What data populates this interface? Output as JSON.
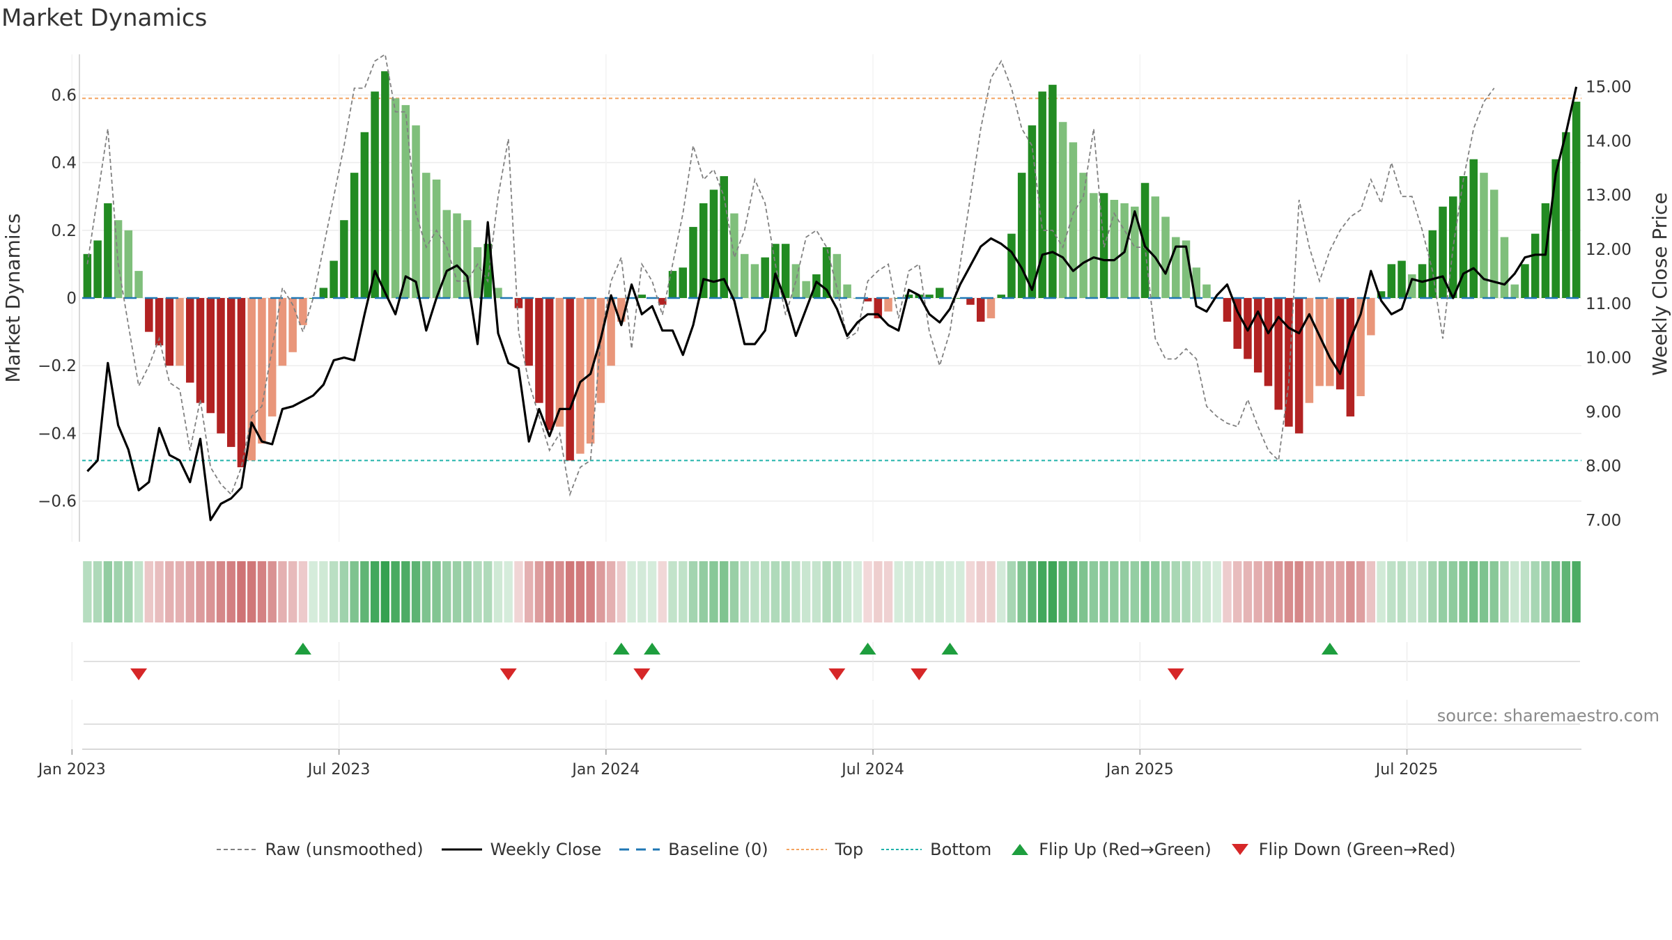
{
  "title": "Market Dynamics",
  "source": "source: sharemaestro.com",
  "colors": {
    "strong_green": "#228B22",
    "light_green": "#7fbf7b",
    "strong_red": "#b22222",
    "light_red": "#e9967a",
    "close_line": "#000000",
    "raw_line": "#808080",
    "baseline": "#1f77b4",
    "top": "#f4a460",
    "bottom": "#20b2aa",
    "flip_up": "#1e9e3e",
    "flip_down": "#d62728"
  },
  "legend": [
    {
      "key": "raw",
      "label": "Raw (unsmoothed)",
      "icon": "gray-dashed-line"
    },
    {
      "key": "close",
      "label": "Weekly Close",
      "icon": "black-solid-line"
    },
    {
      "key": "baseline",
      "label": "Baseline (0)",
      "icon": "blue-dashed-line"
    },
    {
      "key": "top",
      "label": "Top",
      "icon": "orange-dotted-line"
    },
    {
      "key": "bottom",
      "label": "Bottom",
      "icon": "teal-dotted-line"
    },
    {
      "key": "flip_up",
      "label": "Flip Up (Red→Green)",
      "icon": "green-up-triangle"
    },
    {
      "key": "flip_down",
      "label": "Flip Down (Green→Red)",
      "icon": "red-down-triangle"
    }
  ],
  "chart_data": {
    "type": "bar",
    "title": "Market Dynamics",
    "ylabel_left": "Market Dynamics",
    "ylabel_right": "Weekly Close Price",
    "left_ticks": [
      "0.6",
      "0.4",
      "0.2",
      "0",
      "−0.2",
      "−0.4",
      "−0.6"
    ],
    "left_tick_values": [
      0.6,
      0.4,
      0.2,
      0,
      -0.2,
      -0.4,
      -0.6
    ],
    "right_ticks": [
      "15.00",
      "14.00",
      "13.00",
      "12.00",
      "11.00",
      "10.00",
      "9.00",
      "8.00",
      "7.00"
    ],
    "right_tick_values": [
      15,
      14,
      13,
      12,
      11,
      10,
      9,
      8,
      7
    ],
    "x_ticks": [
      "Jan 2023",
      "Jul 2023",
      "Jan 2024",
      "Jul 2024",
      "Jan 2025",
      "Jul 2025"
    ],
    "x_tick_weeks": [
      0,
      26,
      52,
      78,
      104,
      130
    ],
    "ylim_left": [
      -0.72,
      0.72
    ],
    "ylim_right": [
      6.6,
      15.6
    ],
    "top_level": 0.59,
    "bottom_level": -0.48,
    "baseline_level": 0,
    "start_week": "2023-01-01",
    "series": [
      {
        "name": "Market Dynamics",
        "values": [
          0.13,
          0.17,
          0.28,
          0.23,
          0.2,
          0.08,
          -0.1,
          -0.14,
          -0.2,
          -0.2,
          -0.25,
          -0.31,
          -0.34,
          -0.4,
          -0.44,
          -0.5,
          -0.48,
          -0.43,
          -0.35,
          -0.2,
          -0.16,
          -0.08,
          0,
          0.03,
          0.11,
          0.23,
          0.37,
          0.49,
          0.61,
          0.67,
          0.59,
          0.57,
          0.51,
          0.37,
          0.35,
          0.26,
          0.25,
          0.23,
          0.15,
          0.16,
          0.03,
          0,
          -0.03,
          -0.2,
          -0.31,
          -0.39,
          -0.38,
          -0.48,
          -0.46,
          -0.43,
          -0.31,
          -0.2,
          -0.07,
          0,
          0.01,
          0,
          -0.02,
          0.08,
          0.09,
          0.21,
          0.28,
          0.32,
          0.36,
          0.25,
          0.13,
          0.1,
          0.12,
          0.16,
          0.16,
          0.1,
          0.05,
          0.07,
          0.15,
          0.13,
          0.04,
          0,
          -0.01,
          -0.06,
          -0.04,
          0,
          0.01,
          0.01,
          0.01,
          0.03,
          0,
          0,
          -0.02,
          -0.07,
          -0.06,
          0.01,
          0.19,
          0.37,
          0.51,
          0.61,
          0.63,
          0.52,
          0.46,
          0.37,
          0.31,
          0.31,
          0.29,
          0.28,
          0.27,
          0.34,
          0.3,
          0.24,
          0.18,
          0.17,
          0.09,
          0.04,
          0,
          -0.07,
          -0.15,
          -0.18,
          -0.22,
          -0.26,
          -0.33,
          -0.38,
          -0.4,
          -0.31,
          -0.26,
          -0.26,
          -0.27,
          -0.35,
          -0.29,
          -0.11,
          0.02,
          0.1,
          0.11,
          0.07,
          0.1,
          0.2,
          0.27,
          0.3,
          0.36,
          0.41,
          0.37,
          0.32,
          0.18,
          0.04,
          0.1,
          0.19,
          0.28,
          0.41,
          0.49,
          0.58
        ]
      },
      {
        "name": "Raw (unsmoothed)",
        "values": [
          0.1,
          0.3,
          0.5,
          0.1,
          -0.08,
          -0.26,
          -0.2,
          -0.12,
          -0.25,
          -0.27,
          -0.45,
          -0.3,
          -0.5,
          -0.55,
          -0.58,
          -0.5,
          -0.35,
          -0.32,
          -0.15,
          0.03,
          -0.02,
          -0.1,
          0,
          0.15,
          0.3,
          0.45,
          0.62,
          0.62,
          0.7,
          0.72,
          0.55,
          0.55,
          0.25,
          0.15,
          0.2,
          0.15,
          0.05,
          0.05,
          0.1,
          0.05,
          0.3,
          0.47,
          -0.1,
          -0.25,
          -0.35,
          -0.45,
          -0.4,
          -0.58,
          -0.5,
          -0.48,
          -0.12,
          0.05,
          0.12,
          -0.15,
          0.1,
          0.05,
          -0.05,
          0.1,
          0.25,
          0.45,
          0.35,
          0.38,
          0.3,
          0.12,
          0.2,
          0.35,
          0.28,
          0.1,
          -0.05,
          0.05,
          0.18,
          0.2,
          0.15,
          0.03,
          -0.12,
          -0.1,
          0.05,
          0.08,
          0.1,
          -0.06,
          0.08,
          0.1,
          -0.1,
          -0.2,
          -0.1,
          0.1,
          0.3,
          0.5,
          0.65,
          0.7,
          0.62,
          0.5,
          0.45,
          0.2,
          0.2,
          0.15,
          0.25,
          0.3,
          0.5,
          0.15,
          0.25,
          0.2,
          0.15,
          0.15,
          -0.12,
          -0.18,
          -0.18,
          -0.15,
          -0.18,
          -0.32,
          -0.35,
          -0.37,
          -0.38,
          -0.3,
          -0.38,
          -0.45,
          -0.48,
          -0.25,
          0.29,
          0.15,
          0.05,
          0.14,
          0.2,
          0.24,
          0.26,
          0.35,
          0.28,
          0.4,
          0.3,
          0.3,
          0.2,
          0.08,
          -0.12,
          0.15,
          0.35,
          0.5,
          0.58,
          0.62
        ]
      },
      {
        "name": "Weekly Close",
        "values": [
          7.9,
          8.1,
          9.9,
          8.75,
          8.3,
          7.55,
          7.7,
          8.7,
          8.2,
          8.1,
          7.7,
          8.5,
          7,
          7.3,
          7.4,
          7.6,
          8.8,
          8.45,
          8.4,
          9.05,
          9.1,
          9.2,
          9.3,
          9.5,
          9.95,
          10,
          9.95,
          10.8,
          11.6,
          11.2,
          10.8,
          11.5,
          11.4,
          10.5,
          11.1,
          11.6,
          11.7,
          11.5,
          10.25,
          12.5,
          10.45,
          9.9,
          9.8,
          8.45,
          9.05,
          8.55,
          9.05,
          9.05,
          9.55,
          9.7,
          10.35,
          11.15,
          10.6,
          11.35,
          10.8,
          10.95,
          10.5,
          10.5,
          10.05,
          10.6,
          11.45,
          11.4,
          11.45,
          11.05,
          10.25,
          10.25,
          10.5,
          11.55,
          11.05,
          10.4,
          10.9,
          11.4,
          11.25,
          10.9,
          10.4,
          10.65,
          10.8,
          10.8,
          10.6,
          10.5,
          11.25,
          11.15,
          10.8,
          10.65,
          10.9,
          11.35,
          11.7,
          12.05,
          12.2,
          12.1,
          11.95,
          11.65,
          11.25,
          11.9,
          11.95,
          11.85,
          11.6,
          11.75,
          11.85,
          11.8,
          11.8,
          11.95,
          12.7,
          12.05,
          11.85,
          11.55,
          12.05,
          12.05,
          10.95,
          10.85,
          11.15,
          11.35,
          10.85,
          10.5,
          10.85,
          10.45,
          10.75,
          10.55,
          10.45,
          10.8,
          10.4,
          10,
          9.7,
          10.35,
          10.8,
          11.6,
          11.05,
          10.8,
          10.9,
          11.45,
          11.4,
          11.45,
          11.5,
          11.1,
          11.55,
          11.65,
          11.45,
          11.4,
          11.35,
          11.55,
          11.85,
          11.9,
          11.9,
          13.4,
          14.15,
          15
        ]
      }
    ],
    "flip_up_weeks": [
      21,
      52,
      55,
      76,
      84,
      121
    ],
    "flip_down_weeks": [
      5,
      41,
      54,
      73,
      81,
      106
    ],
    "flip_up_label": "Flip Up (Red→Green)",
    "flip_down_label": "Flip Down (Green→Red)"
  }
}
